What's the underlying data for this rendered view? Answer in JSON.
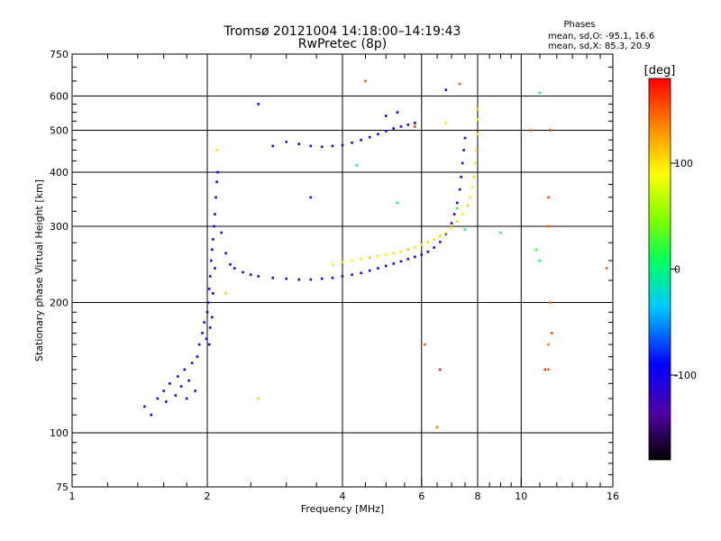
{
  "chart_data": {
    "type": "scatter",
    "title": "Tromsø 20121004 14:18:00–14:19:43",
    "subtitle": "RwPretec (8p)",
    "info": {
      "heading": "Phases",
      "line_o": "mean, sd,O:  -95.1, 16.6",
      "line_x": "mean, sd,X:  85.3, 20.9"
    },
    "xlabel": "Frequency [MHz]",
    "ylabel": "Stationary phase Virtual Height [km]",
    "x_scale": "log",
    "y_scale": "log",
    "xlim": [
      1,
      16
    ],
    "ylim": [
      75,
      750
    ],
    "x_ticks": [
      {
        "value": 1,
        "label": "1"
      },
      {
        "value": 2,
        "label": "2"
      },
      {
        "value": 4,
        "label": "4"
      },
      {
        "value": 6,
        "label": "6"
      },
      {
        "value": 8,
        "label": "8"
      },
      {
        "value": 10,
        "label": "10"
      },
      {
        "value": 16,
        "label": "16"
      }
    ],
    "y_ticks": [
      {
        "value": 75,
        "label": "75"
      },
      {
        "value": 100,
        "label": "100"
      },
      {
        "value": 200,
        "label": "200"
      },
      {
        "value": 300,
        "label": "300"
      },
      {
        "value": 400,
        "label": "400"
      },
      {
        "value": 500,
        "label": "500"
      },
      {
        "value": 600,
        "label": "600"
      },
      {
        "value": 750,
        "label": "750"
      }
    ],
    "x_grid": [
      2,
      4,
      6,
      8,
      10
    ],
    "y_grid": [
      100,
      200,
      300,
      400,
      500,
      600
    ],
    "colorbar": {
      "label": "[deg]",
      "range": [
        -180,
        180
      ],
      "ticks": [
        {
          "value": 100,
          "label": "100"
        },
        {
          "value": 0,
          "label": "0"
        },
        {
          "value": -100,
          "label": "-100"
        }
      ]
    },
    "series": [
      {
        "points": [
          [
            1.45,
            115,
            -110
          ],
          [
            1.5,
            110,
            -105
          ],
          [
            1.55,
            120,
            -110
          ],
          [
            1.6,
            125,
            -100
          ],
          [
            1.62,
            118,
            -110
          ],
          [
            1.65,
            130,
            -105
          ],
          [
            1.7,
            122,
            -110
          ],
          [
            1.72,
            135,
            -100
          ],
          [
            1.75,
            128,
            -110
          ],
          [
            1.78,
            140,
            -105
          ],
          [
            1.8,
            120,
            -110
          ],
          [
            1.82,
            132,
            -100
          ],
          [
            1.85,
            145,
            -110
          ],
          [
            1.88,
            125,
            -105
          ],
          [
            1.9,
            150,
            -100
          ],
          [
            1.92,
            160,
            -110
          ],
          [
            1.95,
            170,
            -105
          ],
          [
            1.97,
            180,
            -100
          ],
          [
            1.99,
            165,
            -110
          ],
          [
            2.0,
            190,
            -105
          ],
          [
            2.01,
            200,
            -110
          ],
          [
            2.02,
            215,
            -100
          ],
          [
            2.03,
            230,
            -105
          ],
          [
            2.04,
            250,
            -110
          ],
          [
            2.05,
            265,
            -100
          ],
          [
            2.06,
            280,
            -105
          ],
          [
            2.07,
            300,
            -110
          ],
          [
            2.08,
            320,
            -100
          ],
          [
            2.09,
            350,
            -105
          ],
          [
            2.1,
            380,
            -110
          ],
          [
            2.11,
            400,
            -100
          ],
          [
            2.05,
            185,
            -110
          ],
          [
            2.03,
            175,
            -105
          ],
          [
            2.02,
            160,
            -110
          ],
          [
            2.06,
            210,
            -100
          ],
          [
            2.08,
            240,
            -105
          ],
          [
            2.15,
            290,
            -110
          ],
          [
            2.2,
            260,
            -105
          ],
          [
            2.25,
            245,
            -110
          ],
          [
            2.3,
            240,
            -100
          ],
          [
            2.4,
            235,
            -105
          ],
          [
            2.5,
            232,
            -110
          ],
          [
            2.6,
            230,
            -100
          ],
          [
            2.8,
            228,
            -105
          ],
          [
            3.0,
            227,
            -110
          ],
          [
            3.2,
            226,
            -100
          ],
          [
            3.4,
            226,
            -105
          ],
          [
            3.6,
            227,
            -110
          ],
          [
            3.8,
            228,
            -100
          ],
          [
            4.0,
            230,
            -105
          ],
          [
            4.2,
            232,
            -110
          ],
          [
            4.4,
            234,
            -100
          ],
          [
            4.6,
            237,
            -105
          ],
          [
            4.8,
            240,
            -110
          ],
          [
            5.0,
            243,
            -100
          ],
          [
            5.2,
            246,
            -105
          ],
          [
            5.4,
            249,
            -110
          ],
          [
            5.6,
            252,
            -100
          ],
          [
            5.8,
            255,
            -105
          ],
          [
            6.0,
            258,
            -110
          ],
          [
            6.2,
            262,
            -100
          ],
          [
            6.4,
            268,
            -105
          ],
          [
            6.6,
            276,
            -110
          ],
          [
            6.8,
            288,
            -100
          ],
          [
            7.0,
            305,
            -105
          ],
          [
            7.1,
            320,
            -110
          ],
          [
            7.2,
            340,
            -100
          ],
          [
            7.3,
            365,
            -105
          ],
          [
            7.35,
            390,
            -110
          ],
          [
            7.4,
            420,
            -100
          ],
          [
            7.45,
            450,
            -105
          ],
          [
            7.5,
            480,
            -110
          ],
          [
            2.8,
            460,
            -105
          ],
          [
            3.0,
            470,
            -110
          ],
          [
            3.2,
            465,
            -100
          ],
          [
            3.4,
            460,
            -105
          ],
          [
            3.6,
            458,
            -110
          ],
          [
            3.8,
            460,
            -100
          ],
          [
            4.0,
            462,
            -105
          ],
          [
            4.2,
            468,
            -110
          ],
          [
            4.4,
            475,
            -100
          ],
          [
            4.6,
            482,
            -105
          ],
          [
            4.8,
            490,
            -110
          ],
          [
            5.0,
            498,
            -100
          ],
          [
            5.2,
            505,
            -105
          ],
          [
            5.4,
            510,
            -110
          ],
          [
            5.6,
            515,
            -100
          ],
          [
            5.8,
            520,
            -105
          ],
          [
            5.0,
            540,
            -100
          ],
          [
            5.3,
            550,
            -105
          ],
          [
            3.4,
            350,
            -110
          ],
          [
            2.6,
            575,
            -105
          ],
          [
            6.8,
            620,
            -100
          ]
        ]
      },
      {
        "points": [
          [
            3.8,
            245,
            100
          ],
          [
            4.0,
            248,
            105
          ],
          [
            4.2,
            250,
            95
          ],
          [
            4.4,
            252,
            100
          ],
          [
            4.6,
            254,
            110
          ],
          [
            4.8,
            256,
            100
          ],
          [
            5.0,
            258,
            95
          ],
          [
            5.2,
            260,
            105
          ],
          [
            5.4,
            262,
            100
          ],
          [
            5.6,
            265,
            110
          ],
          [
            5.8,
            268,
            100
          ],
          [
            6.0,
            272,
            95
          ],
          [
            6.2,
            276,
            105
          ],
          [
            6.4,
            280,
            100
          ],
          [
            6.6,
            285,
            110
          ],
          [
            6.8,
            290,
            100
          ],
          [
            7.0,
            298,
            95
          ],
          [
            7.2,
            308,
            105
          ],
          [
            7.4,
            320,
            100
          ],
          [
            7.6,
            335,
            110
          ],
          [
            7.7,
            350,
            100
          ],
          [
            7.8,
            370,
            95
          ],
          [
            7.85,
            390,
            105
          ],
          [
            7.9,
            420,
            100
          ],
          [
            7.95,
            450,
            110
          ],
          [
            8.0,
            490,
            100
          ],
          [
            8.0,
            530,
            95
          ],
          [
            8.0,
            560,
            105
          ],
          [
            2.6,
            120,
            110
          ],
          [
            2.1,
            450,
            100
          ],
          [
            2.2,
            210,
            105
          ],
          [
            6.8,
            520,
            100
          ]
        ]
      },
      {
        "points": [
          [
            4.5,
            650,
            150
          ],
          [
            5.8,
            510,
            160
          ],
          [
            6.5,
            103,
            140
          ],
          [
            6.1,
            160,
            150
          ],
          [
            6.6,
            140,
            170
          ],
          [
            10.5,
            500,
            150
          ],
          [
            11.5,
            350,
            160
          ],
          [
            11.5,
            300,
            150
          ],
          [
            11.6,
            200,
            145
          ],
          [
            11.7,
            170,
            155
          ],
          [
            11.3,
            140,
            160
          ],
          [
            11.5,
            140,
            150
          ],
          [
            11.5,
            160,
            140
          ],
          [
            11.6,
            500,
            160
          ],
          [
            15.5,
            240,
            150
          ],
          [
            7.3,
            640,
            150
          ]
        ]
      },
      {
        "points": [
          [
            11.0,
            610,
            10
          ],
          [
            5.3,
            340,
            10
          ],
          [
            7.2,
            330,
            20
          ],
          [
            7.5,
            295,
            10
          ],
          [
            9.0,
            290,
            15
          ],
          [
            10.8,
            265,
            20
          ],
          [
            11.0,
            250,
            10
          ],
          [
            4.3,
            415,
            15
          ]
        ]
      }
    ]
  }
}
